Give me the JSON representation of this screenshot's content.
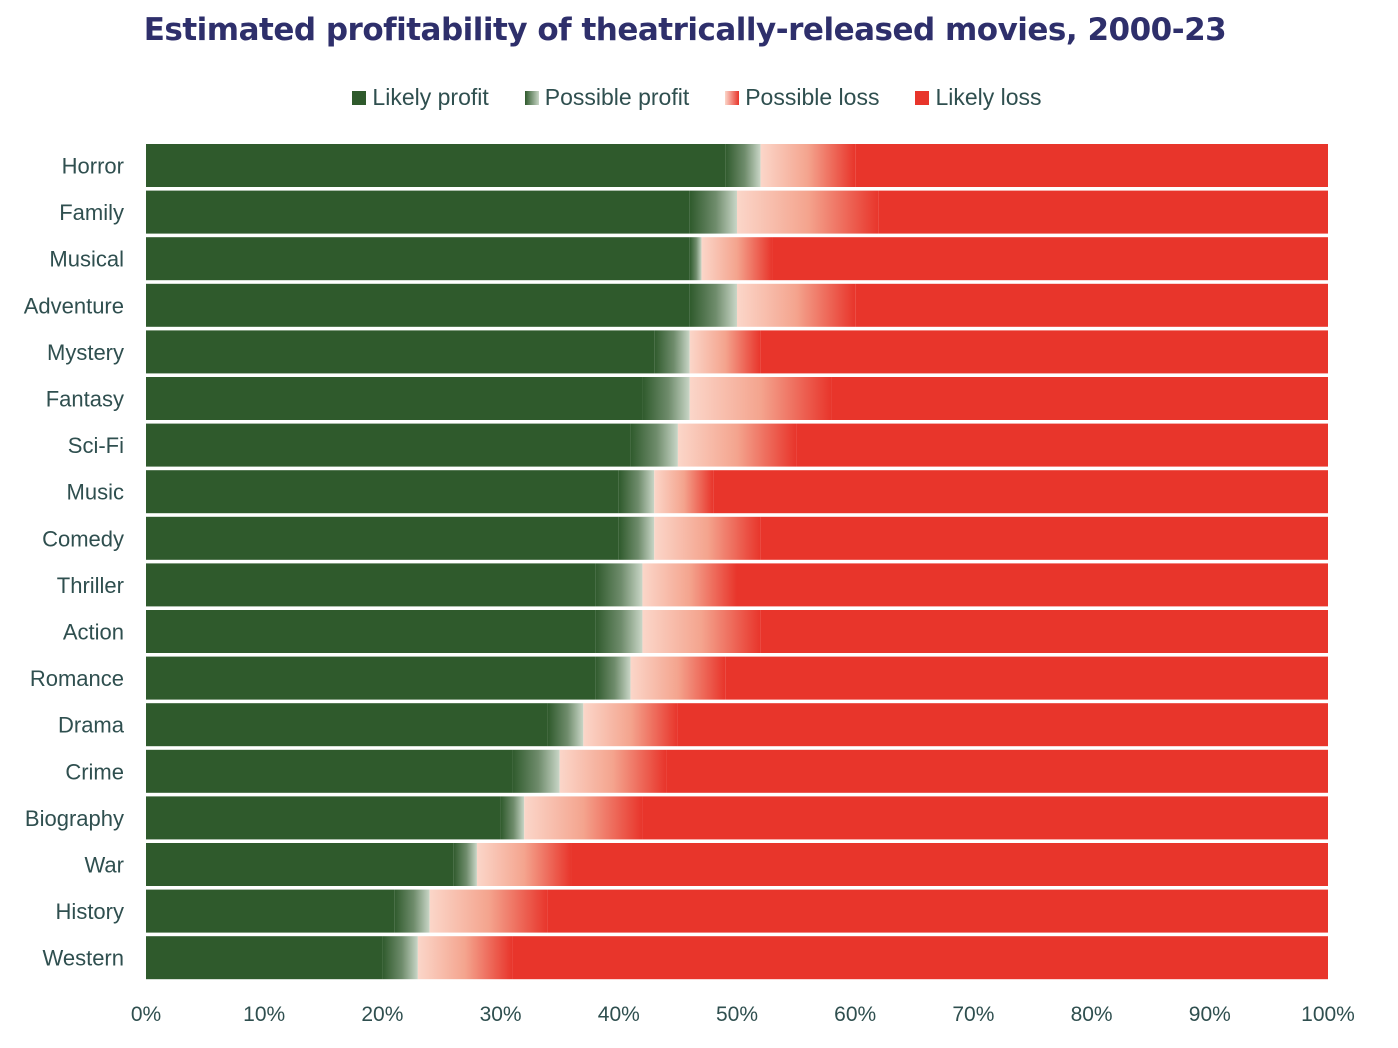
{
  "chart_data": {
    "type": "bar",
    "orientation": "horizontal",
    "stacked": true,
    "title": "Estimated profitability of theatrically-released movies, 2000-23",
    "xlabel": "",
    "ylabel": "",
    "xlim": [
      0,
      100
    ],
    "x_ticks": [
      "0%",
      "10%",
      "20%",
      "30%",
      "40%",
      "50%",
      "60%",
      "70%",
      "80%",
      "90%",
      "100%"
    ],
    "legend_position": "top",
    "categories": [
      "Horror",
      "Family",
      "Musical",
      "Adventure",
      "Mystery",
      "Fantasy",
      "Sci-Fi",
      "Music",
      "Comedy",
      "Thriller",
      "Action",
      "Romance",
      "Drama",
      "Crime",
      "Biography",
      "War",
      "History",
      "Western"
    ],
    "series": [
      {
        "name": "Likely profit",
        "color": "#2f5a2c",
        "values": [
          49,
          46,
          46,
          46,
          43,
          42,
          41,
          40,
          40,
          38,
          38,
          38,
          34,
          31,
          30,
          26,
          21,
          20
        ]
      },
      {
        "name": "Possible profit",
        "color": "#8fa88c",
        "values": [
          3,
          4,
          1,
          4,
          3,
          4,
          4,
          3,
          3,
          4,
          4,
          3,
          3,
          4,
          2,
          2,
          3,
          3
        ]
      },
      {
        "name": "Possible loss",
        "color": "#f4a48e",
        "values": [
          8,
          12,
          6,
          10,
          6,
          12,
          10,
          5,
          9,
          8,
          10,
          8,
          8,
          9,
          10,
          8,
          10,
          8
        ]
      },
      {
        "name": "Likely loss",
        "color": "#e8352b",
        "values": [
          40,
          38,
          47,
          40,
          48,
          42,
          45,
          52,
          48,
          50,
          48,
          51,
          55,
          56,
          58,
          64,
          66,
          69
        ]
      }
    ]
  }
}
